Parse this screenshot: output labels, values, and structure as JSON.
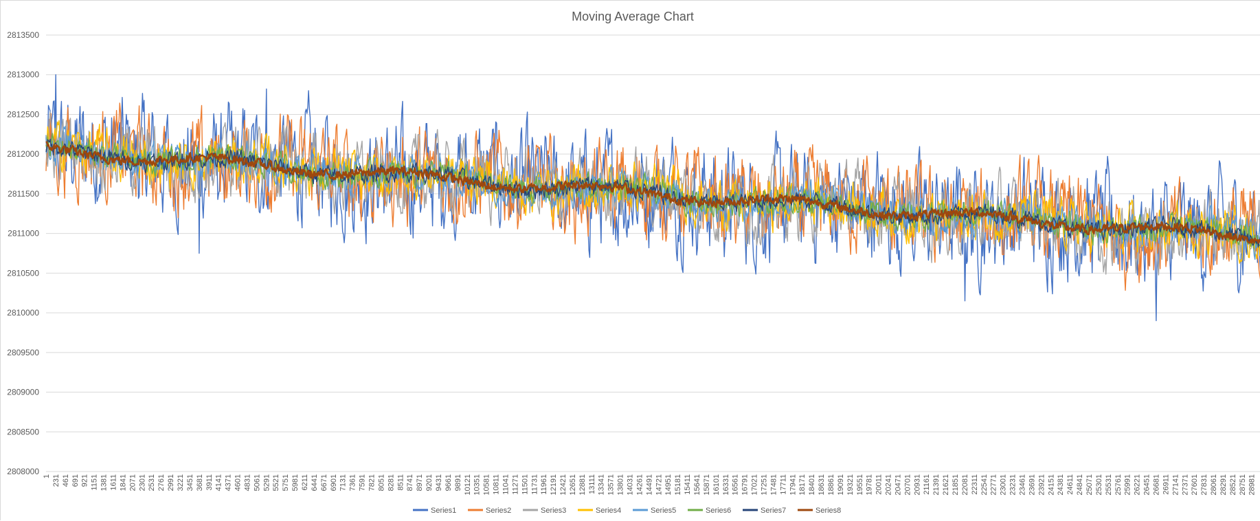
{
  "chart_data": {
    "type": "line",
    "title": "Moving Average Chart",
    "xlabel": "",
    "ylabel": "",
    "ylim": [
      2808000,
      2813500
    ],
    "y_ticks": [
      2808000,
      2808500,
      2809000,
      2809500,
      2810000,
      2810500,
      2811000,
      2811500,
      2812000,
      2812500,
      2813000,
      2813500
    ],
    "x_range": [
      1,
      29200
    ],
    "x_tick_labels": [
      "1",
      "231",
      "461",
      "691",
      "921",
      "1151",
      "1381",
      "1611",
      "1841",
      "2071",
      "2301",
      "2531",
      "2761",
      "2991",
      "3221",
      "3451",
      "3681",
      "3911",
      "4141",
      "4371",
      "4601",
      "4831",
      "5061",
      "5291",
      "5521",
      "5751",
      "5981",
      "6211",
      "6441",
      "6671",
      "6901",
      "7131",
      "7361",
      "7591",
      "7821",
      "8051",
      "8281",
      "8511",
      "8741",
      "8971",
      "9201",
      "9431",
      "9661",
      "9891",
      "10121",
      "10351",
      "10581",
      "10811",
      "11041",
      "11271",
      "11501",
      "11731",
      "11961",
      "12191",
      "12421",
      "12651",
      "12881",
      "13111",
      "13341",
      "13571",
      "13801",
      "14031",
      "14261",
      "14491",
      "14721",
      "14951",
      "15181",
      "15411",
      "15641",
      "15871",
      "16101",
      "16331",
      "16561",
      "16791",
      "17021",
      "17251",
      "17481",
      "17711",
      "17941",
      "18171",
      "18401",
      "18631",
      "18861",
      "19091",
      "19321",
      "19551",
      "19781",
      "20011",
      "20241",
      "20471",
      "20701",
      "20931",
      "21161",
      "21391",
      "21621",
      "21851",
      "22081",
      "22311",
      "22541",
      "22771",
      "23001",
      "23231",
      "23461",
      "23691",
      "23921",
      "24151",
      "24381",
      "24611",
      "24841",
      "25071",
      "25301",
      "25531",
      "25761",
      "25991",
      "26221",
      "26451",
      "26681",
      "26911",
      "27141",
      "27371",
      "27601",
      "27831",
      "28061",
      "28291",
      "28521",
      "28751",
      "28981"
    ],
    "grid": true,
    "legend_position": "bottom",
    "trend": {
      "start": 2812050,
      "end": 2810950
    },
    "series": [
      {
        "name": "Series1",
        "color": "#4472C4",
        "band": 520,
        "noise": 0.4,
        "outliers": [
          {
            "x": 231,
            "y": 2813000
          },
          {
            "x": 26681,
            "y": 2809900
          },
          {
            "x": 22081,
            "y": 2810150
          },
          {
            "x": 3681,
            "y": 2810750
          },
          {
            "x": 5291,
            "y": 2812820
          }
        ]
      },
      {
        "name": "Series2",
        "color": "#ED7D31",
        "band": 430,
        "noise": 0.4,
        "outliers": []
      },
      {
        "name": "Series3",
        "color": "#A5A5A5",
        "band": 340,
        "noise": 0.42,
        "outliers": []
      },
      {
        "name": "Series4",
        "color": "#FFC000",
        "band": 230,
        "noise": 0.45,
        "outliers": []
      },
      {
        "name": "Series5",
        "color": "#5B9BD5",
        "band": 170,
        "noise": 0.48,
        "outliers": []
      },
      {
        "name": "Series6",
        "color": "#70AD47",
        "band": 130,
        "noise": 0.5,
        "outliers": []
      },
      {
        "name": "Series7",
        "color": "#264478",
        "band": 95,
        "noise": 0.55,
        "outliers": []
      },
      {
        "name": "Series8",
        "color": "#9E480E",
        "band": 50,
        "noise": 0.6,
        "outliers": []
      }
    ]
  }
}
